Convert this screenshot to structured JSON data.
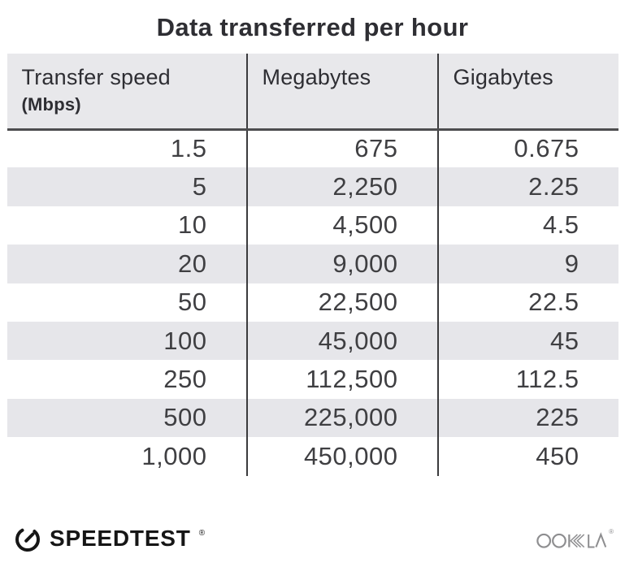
{
  "title": "Data transferred per hour",
  "chart_data": {
    "type": "table",
    "title": "Data transferred per hour",
    "columns": [
      {
        "label": "Transfer speed",
        "sublabel": "(Mbps)"
      },
      {
        "label": "Megabytes",
        "sublabel": ""
      },
      {
        "label": "Gigabytes",
        "sublabel": ""
      }
    ],
    "rows": [
      [
        "1.5",
        "675",
        "0.675"
      ],
      [
        "5",
        "2,250",
        "2.25"
      ],
      [
        "10",
        "4,500",
        "4.5"
      ],
      [
        "20",
        "9,000",
        "9"
      ],
      [
        "50",
        "22,500",
        "22.5"
      ],
      [
        "100",
        "45,000",
        "45"
      ],
      [
        "250",
        "112,500",
        "112.5"
      ],
      [
        "500",
        "225,000",
        "225"
      ],
      [
        "1,000",
        "450,000",
        "450"
      ]
    ]
  },
  "footer": {
    "speedtest_label": "SPEEDTEST",
    "ookla_label": "OOKLA",
    "registered_mark": "®"
  },
  "colors": {
    "header_bg": "#e8e8eb",
    "stripe_bg": "#e6e6ea",
    "divider": "#3b3b3d",
    "header_underline": "#4d4d4f",
    "title_text": "#2e2e33",
    "body_text": "#3f3f42",
    "speedtest_black": "#161616",
    "ookla_gray": "#8e8e90"
  }
}
